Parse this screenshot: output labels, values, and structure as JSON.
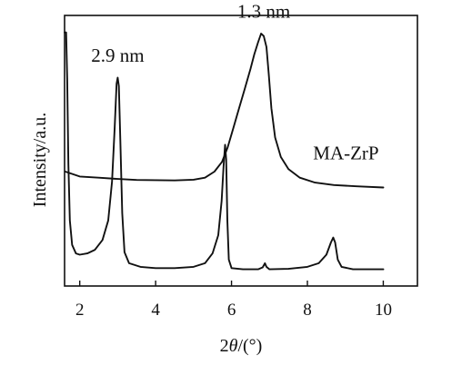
{
  "chart_data": {
    "type": "line",
    "title": "",
    "xlabel_prefix": "2",
    "xlabel_symbol": "θ",
    "xlabel_unit": "/(°)",
    "ylabel": "Intensity/a.u.",
    "xlim": [
      1.6,
      10.9
    ],
    "x_ticks": [
      2,
      4,
      6,
      8,
      10
    ],
    "y_ticks_shown": false,
    "grid": false,
    "legend": "none",
    "series": [
      {
        "name": "MA-ZrP",
        "color": "#111111",
        "points": [
          [
            1.62,
            0.42
          ],
          [
            2.0,
            0.4
          ],
          [
            2.5,
            0.395
          ],
          [
            3.0,
            0.39
          ],
          [
            3.5,
            0.386
          ],
          [
            4.0,
            0.385
          ],
          [
            4.5,
            0.384
          ],
          [
            5.0,
            0.387
          ],
          [
            5.3,
            0.395
          ],
          [
            5.55,
            0.42
          ],
          [
            5.75,
            0.46
          ],
          [
            5.9,
            0.52
          ],
          [
            6.05,
            0.6
          ],
          [
            6.2,
            0.68
          ],
          [
            6.35,
            0.76
          ],
          [
            6.5,
            0.84
          ],
          [
            6.6,
            0.9
          ],
          [
            6.7,
            0.95
          ],
          [
            6.78,
            0.985
          ],
          [
            6.85,
            0.975
          ],
          [
            6.92,
            0.93
          ],
          [
            6.98,
            0.82
          ],
          [
            7.05,
            0.68
          ],
          [
            7.15,
            0.56
          ],
          [
            7.3,
            0.48
          ],
          [
            7.5,
            0.43
          ],
          [
            7.8,
            0.395
          ],
          [
            8.2,
            0.375
          ],
          [
            8.7,
            0.365
          ],
          [
            9.3,
            0.36
          ],
          [
            10.0,
            0.355
          ]
        ]
      },
      {
        "name": "",
        "color": "#111111",
        "points": [
          [
            1.6,
            0.99
          ],
          [
            1.64,
            0.99
          ],
          [
            1.67,
            0.8
          ],
          [
            1.7,
            0.45
          ],
          [
            1.74,
            0.22
          ],
          [
            1.8,
            0.12
          ],
          [
            1.9,
            0.085
          ],
          [
            2.0,
            0.08
          ],
          [
            2.2,
            0.085
          ],
          [
            2.4,
            0.1
          ],
          [
            2.6,
            0.14
          ],
          [
            2.75,
            0.22
          ],
          [
            2.85,
            0.38
          ],
          [
            2.92,
            0.6
          ],
          [
            2.97,
            0.78
          ],
          [
            3.0,
            0.805
          ],
          [
            3.03,
            0.77
          ],
          [
            3.07,
            0.55
          ],
          [
            3.12,
            0.25
          ],
          [
            3.18,
            0.09
          ],
          [
            3.3,
            0.045
          ],
          [
            3.6,
            0.03
          ],
          [
            4.0,
            0.025
          ],
          [
            4.5,
            0.025
          ],
          [
            5.0,
            0.03
          ],
          [
            5.3,
            0.045
          ],
          [
            5.5,
            0.085
          ],
          [
            5.65,
            0.16
          ],
          [
            5.74,
            0.3
          ],
          [
            5.79,
            0.44
          ],
          [
            5.83,
            0.53
          ],
          [
            5.86,
            0.47
          ],
          [
            5.89,
            0.22
          ],
          [
            5.93,
            0.06
          ],
          [
            6.0,
            0.025
          ],
          [
            6.3,
            0.02
          ],
          [
            6.7,
            0.02
          ],
          [
            6.82,
            0.028
          ],
          [
            6.88,
            0.045
          ],
          [
            6.92,
            0.03
          ],
          [
            7.0,
            0.02
          ],
          [
            7.5,
            0.022
          ],
          [
            8.0,
            0.03
          ],
          [
            8.3,
            0.045
          ],
          [
            8.5,
            0.08
          ],
          [
            8.62,
            0.13
          ],
          [
            8.68,
            0.15
          ],
          [
            8.73,
            0.13
          ],
          [
            8.8,
            0.06
          ],
          [
            8.9,
            0.03
          ],
          [
            9.2,
            0.02
          ],
          [
            10.0,
            0.02
          ]
        ]
      }
    ],
    "annotations": [
      {
        "text": "1.3 nm",
        "x": 6.85,
        "y": 1.05,
        "anchor": "middle"
      },
      {
        "text": "2.9 nm",
        "x": 3.0,
        "y": 0.87,
        "anchor": "middle"
      },
      {
        "text": "MA-ZrP",
        "x": 8.15,
        "y": 0.47,
        "anchor": "start"
      }
    ]
  }
}
